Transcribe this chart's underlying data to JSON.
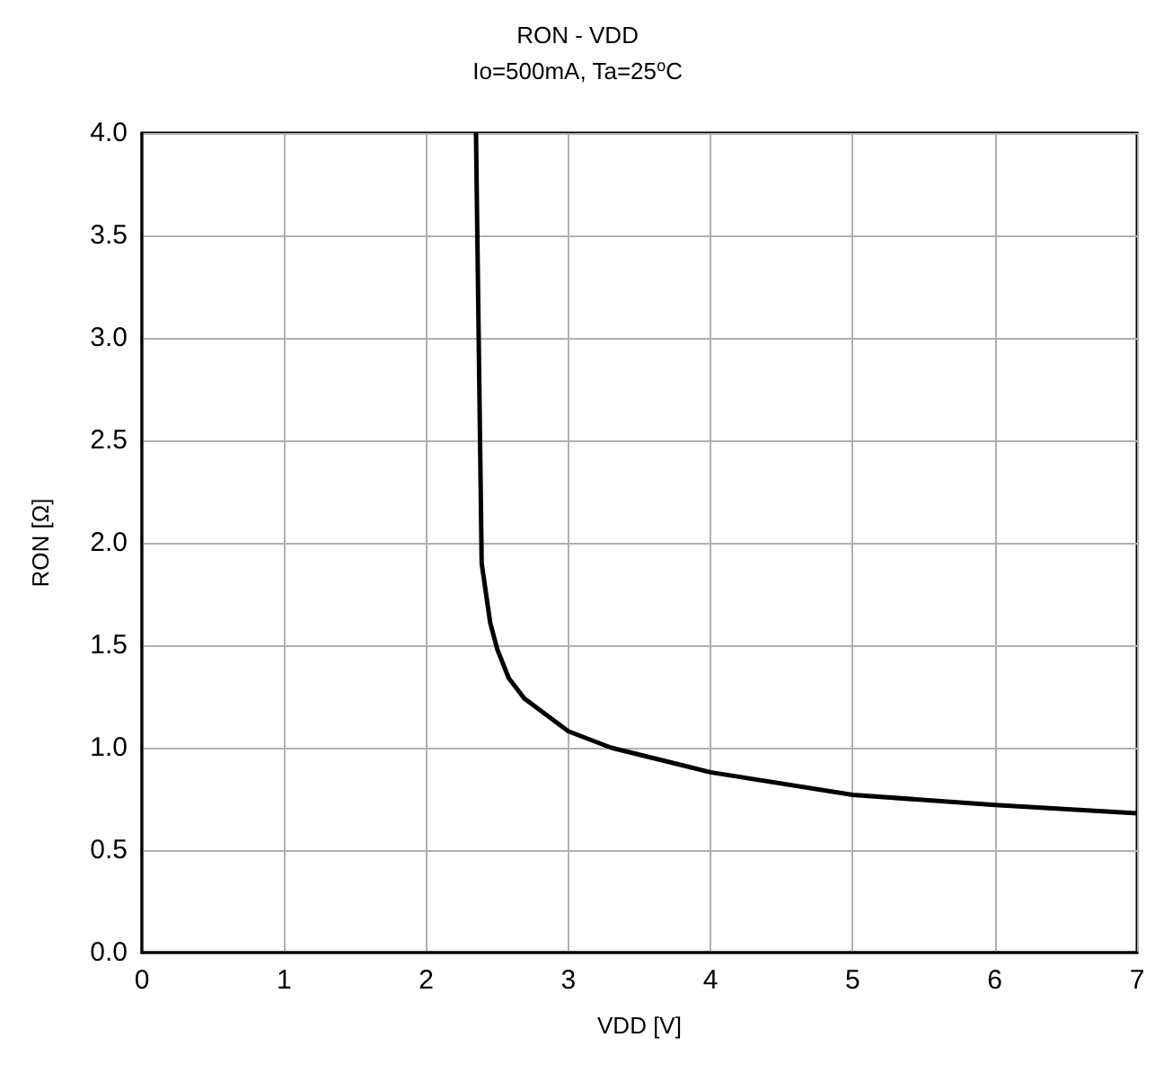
{
  "chart_data": {
    "type": "line",
    "title": "RON - VDD",
    "subtitle": "Io=500mA, Ta=25$^{o}$C",
    "xlabel": "VDD [V]",
    "ylabel": "RON [Ω]",
    "x": [
      2.35,
      2.39,
      2.45,
      2.5,
      2.58,
      2.69,
      3.0,
      3.3,
      4.0,
      5.0,
      6.0,
      7.0
    ],
    "series": [
      {
        "color": "#000000",
        "values": [
          4.0,
          1.9,
          1.61,
          1.48,
          1.34,
          1.24,
          1.08,
          1.0,
          0.88,
          0.77,
          0.72,
          0.68
        ]
      }
    ],
    "xlim": [
      0,
      7
    ],
    "xticks": [
      0,
      1,
      2,
      3,
      4,
      5,
      6,
      7
    ],
    "ylim": [
      0,
      4
    ],
    "yticks": [
      {
        "value": 0,
        "label": "0.0"
      },
      {
        "value": 0.5,
        "label": "0.5"
      },
      {
        "value": 1,
        "label": "1.0"
      },
      {
        "value": 1.5,
        "label": "1.5"
      },
      {
        "value": 2,
        "label": "2.0"
      },
      {
        "value": 2.5,
        "label": "2.5"
      },
      {
        "value": 3,
        "label": "3.0"
      },
      {
        "value": 3.5,
        "label": "3.5"
      },
      {
        "value": 4,
        "label": "4.0"
      }
    ],
    "grid": true,
    "marker": "none",
    "line_style": "solid"
  }
}
